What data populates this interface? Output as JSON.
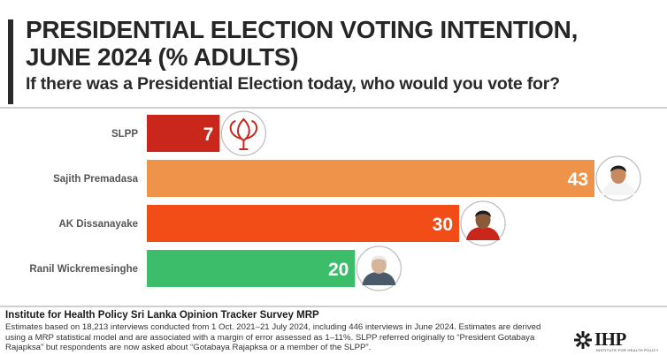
{
  "title_line1": "PRESIDENTIAL ELECTION VOTING INTENTION,",
  "title_line2": "JUNE 2024 (% ADULTS)",
  "subtitle": "If there was a Presidential Election today, who would you vote for?",
  "chart_data": {
    "type": "bar",
    "orientation": "horizontal",
    "categories": [
      "SLPP",
      "Sajith Premadasa",
      "AK Dissanayake",
      "Ranil Wickremesinghe"
    ],
    "values": [
      7,
      43,
      30,
      20
    ],
    "value_labels": [
      "7",
      "43",
      "30",
      "20"
    ],
    "colors": [
      "#c9271b",
      "#f0934a",
      "#f24d17",
      "#3cbd6a"
    ],
    "xlim": [
      0,
      43
    ],
    "grid": false
  },
  "footer": {
    "source": "Institute for Health Policy Sri Lanka Opinion Tracker Survey MRP",
    "note": "Estimates based on 18,213 interviews conducted from 1 Oct. 2021–21 July 2024, including 446 interviews in June 2024. Estimates are derived using a MRP statistical model and are associated with a margin of error assessed as 1–11%. SLPP referred originally to “President Gotabaya Rajapksa” but respondents are now asked about “Gotabaya Rajapksa or a member of the SLPP”."
  },
  "logo": {
    "text": "IHP",
    "subtext": "INSTITUTE FOR HEALTH POLICY",
    "icon": "ihp-snowflake-logo-icon"
  },
  "icons": [
    "lotus-bud-icon",
    "portrait-sajith-icon",
    "portrait-akd-icon",
    "portrait-ranil-icon"
  ]
}
